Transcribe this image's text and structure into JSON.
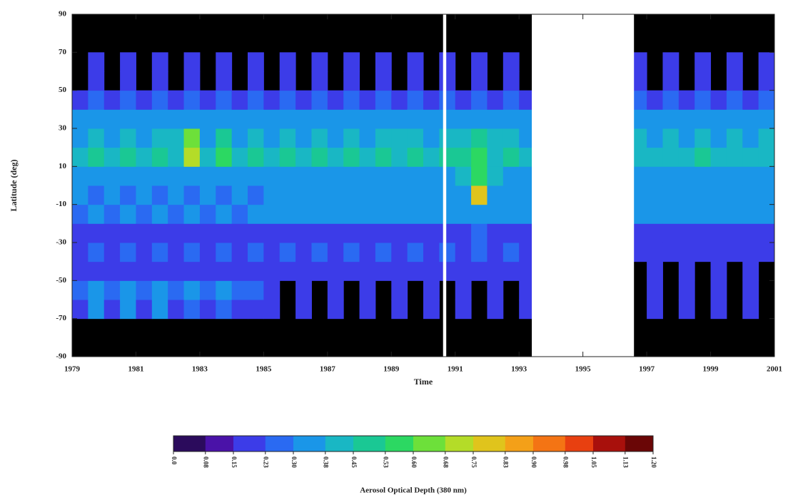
{
  "chart_data": {
    "type": "heatmap",
    "xlabel": "Time",
    "ylabel": "Latitude (deg)",
    "xlim": [
      1979,
      2001
    ],
    "ylim": [
      -90,
      90
    ],
    "xticks": [
      1979,
      1981,
      1983,
      1985,
      1987,
      1989,
      1991,
      1993,
      1995,
      1997,
      1999,
      2001
    ],
    "yticks": [
      -90,
      -70,
      -50,
      -30,
      -10,
      10,
      30,
      50,
      70,
      90
    ],
    "no_data_color": "#000000",
    "gap_color": "#ffffff",
    "gaps": [
      [
        1990.62,
        1990.72
      ],
      [
        1993.4,
        1996.6
      ]
    ],
    "xbins": [
      1979,
      1979.5,
      1980,
      1980.5,
      1981,
      1981.5,
      1982,
      1982.5,
      1983,
      1983.5,
      1984,
      1984.5,
      1985,
      1985.5,
      1986,
      1986.5,
      1987,
      1987.5,
      1988,
      1988.5,
      1989,
      1989.5,
      1990,
      1990.5,
      1991,
      1991.5,
      1992,
      1992.5,
      1993,
      1993.5,
      1994,
      1994.5,
      1995,
      1995.5,
      1996,
      1996.5,
      1997,
      1997.5,
      1998,
      1998.5,
      1999,
      1999.5,
      2000,
      2000.5,
      2001
    ],
    "ybins": [
      -90,
      -80,
      -70,
      -60,
      -50,
      -40,
      -30,
      -20,
      -10,
      0,
      10,
      20,
      30,
      40,
      50,
      60,
      70,
      80,
      90
    ],
    "values": [
      [
        null,
        null,
        0.2,
        0.25,
        0.22,
        0.2,
        0.18,
        0.28,
        0.3,
        0.33,
        0.38,
        0.35,
        0.3,
        0.2,
        null,
        null,
        null,
        null
      ],
      [
        null,
        null,
        0.3,
        0.3,
        0.2,
        0.25,
        0.2,
        0.3,
        0.28,
        0.3,
        0.45,
        0.42,
        0.32,
        0.26,
        0.22,
        0.16,
        null,
        null
      ],
      [
        null,
        null,
        0.2,
        0.24,
        0.22,
        0.2,
        0.2,
        0.28,
        0.3,
        0.34,
        0.4,
        0.36,
        0.3,
        0.2,
        null,
        null,
        null,
        null
      ],
      [
        null,
        null,
        0.3,
        0.3,
        0.2,
        0.25,
        0.2,
        0.3,
        0.28,
        0.3,
        0.46,
        0.42,
        0.32,
        0.26,
        0.22,
        0.16,
        null,
        null
      ],
      [
        null,
        null,
        0.2,
        0.25,
        0.22,
        0.2,
        0.18,
        0.28,
        0.3,
        0.33,
        0.38,
        0.35,
        0.3,
        0.2,
        null,
        null,
        null,
        null
      ],
      [
        null,
        null,
        0.3,
        0.3,
        0.2,
        0.25,
        0.2,
        0.3,
        0.28,
        0.3,
        0.45,
        0.42,
        0.32,
        0.26,
        0.22,
        0.16,
        null,
        null
      ],
      [
        null,
        null,
        0.2,
        0.24,
        0.22,
        0.2,
        0.18,
        0.28,
        0.3,
        0.34,
        0.42,
        0.38,
        0.3,
        0.2,
        null,
        null,
        null,
        null
      ],
      [
        null,
        null,
        0.28,
        0.3,
        0.2,
        0.25,
        0.2,
        0.3,
        0.28,
        0.32,
        0.72,
        0.6,
        0.34,
        0.26,
        0.22,
        0.16,
        null,
        null
      ],
      [
        null,
        null,
        0.2,
        0.25,
        0.22,
        0.2,
        0.18,
        0.28,
        0.3,
        0.33,
        0.4,
        0.36,
        0.3,
        0.2,
        null,
        null,
        null,
        null
      ],
      [
        null,
        null,
        0.28,
        0.3,
        0.2,
        0.25,
        0.2,
        0.3,
        0.28,
        0.3,
        0.55,
        0.46,
        0.32,
        0.26,
        0.22,
        0.16,
        null,
        null
      ],
      [
        null,
        null,
        0.2,
        0.24,
        0.22,
        0.2,
        0.18,
        0.28,
        0.3,
        0.33,
        0.38,
        0.35,
        0.3,
        0.2,
        null,
        null,
        null,
        null
      ],
      [
        null,
        null,
        0.22,
        0.28,
        0.2,
        0.25,
        0.2,
        0.3,
        0.28,
        0.3,
        0.45,
        0.42,
        0.32,
        0.26,
        0.22,
        0.16,
        null,
        null
      ],
      [
        null,
        null,
        0.18,
        0.22,
        0.2,
        0.22,
        0.2,
        0.3,
        0.33,
        0.36,
        0.4,
        0.36,
        0.3,
        0.2,
        null,
        null,
        null,
        null
      ],
      [
        null,
        null,
        null,
        null,
        0.2,
        0.24,
        0.2,
        0.3,
        0.3,
        0.32,
        0.45,
        0.4,
        0.32,
        0.25,
        0.2,
        0.15,
        null,
        null
      ],
      [
        null,
        null,
        0.18,
        0.22,
        0.2,
        0.22,
        0.2,
        0.3,
        0.33,
        0.36,
        0.42,
        0.36,
        0.3,
        0.2,
        null,
        null,
        null,
        null
      ],
      [
        null,
        null,
        null,
        null,
        0.2,
        0.24,
        0.2,
        0.3,
        0.3,
        0.32,
        0.46,
        0.4,
        0.32,
        0.25,
        0.2,
        0.15,
        null,
        null
      ],
      [
        null,
        null,
        0.18,
        0.22,
        0.2,
        0.22,
        0.2,
        0.3,
        0.33,
        0.36,
        0.4,
        0.36,
        0.3,
        0.2,
        null,
        null,
        null,
        null
      ],
      [
        null,
        null,
        null,
        null,
        0.2,
        0.24,
        0.2,
        0.3,
        0.3,
        0.32,
        0.48,
        0.42,
        0.32,
        0.25,
        0.2,
        0.15,
        null,
        null
      ],
      [
        null,
        null,
        0.18,
        0.22,
        0.2,
        0.22,
        0.2,
        0.3,
        0.33,
        0.36,
        0.4,
        0.36,
        0.3,
        0.2,
        null,
        null,
        null,
        null
      ],
      [
        null,
        null,
        null,
        null,
        0.2,
        0.24,
        0.2,
        0.3,
        0.3,
        0.32,
        0.45,
        0.4,
        0.32,
        0.25,
        0.2,
        0.15,
        null,
        null
      ],
      [
        null,
        null,
        0.18,
        0.22,
        0.2,
        0.22,
        0.2,
        0.3,
        0.33,
        0.36,
        0.42,
        0.38,
        0.3,
        0.2,
        null,
        null,
        null,
        null
      ],
      [
        null,
        null,
        null,
        null,
        0.2,
        0.24,
        0.2,
        0.3,
        0.3,
        0.32,
        0.46,
        0.4,
        0.32,
        0.25,
        0.2,
        0.15,
        null,
        null
      ],
      [
        null,
        null,
        0.18,
        0.22,
        0.2,
        0.22,
        0.2,
        0.3,
        0.33,
        0.36,
        0.4,
        0.36,
        0.3,
        0.2,
        null,
        null,
        null,
        null
      ],
      [
        null,
        null,
        null,
        null,
        0.2,
        0.24,
        0.2,
        0.3,
        0.3,
        0.32,
        0.45,
        0.4,
        0.32,
        0.25,
        0.2,
        0.15,
        null,
        null
      ],
      [
        null,
        null,
        0.18,
        0.22,
        0.2,
        0.22,
        0.22,
        0.32,
        0.35,
        0.38,
        0.5,
        0.4,
        0.3,
        0.2,
        null,
        null,
        null,
        null
      ],
      [
        null,
        null,
        null,
        null,
        0.22,
        0.26,
        0.24,
        0.36,
        0.82,
        0.55,
        0.58,
        0.46,
        0.34,
        0.25,
        0.2,
        0.15,
        null,
        null
      ],
      [
        null,
        null,
        0.18,
        0.22,
        0.2,
        0.22,
        0.22,
        0.32,
        0.36,
        0.38,
        0.44,
        0.38,
        0.3,
        0.2,
        null,
        null,
        null,
        null
      ],
      [
        null,
        null,
        null,
        null,
        0.2,
        0.24,
        0.2,
        0.3,
        0.32,
        0.34,
        0.52,
        0.44,
        0.32,
        0.25,
        0.2,
        0.15,
        null,
        null
      ],
      [
        null,
        null,
        0.18,
        0.22,
        0.2,
        0.22,
        0.2,
        0.3,
        0.33,
        0.36,
        0.4,
        0.36,
        0.3,
        0.2,
        null,
        null,
        null,
        null
      ],
      [
        null,
        null,
        null,
        null,
        null,
        null,
        null,
        null,
        null,
        null,
        null,
        null,
        null,
        null,
        null,
        null,
        null,
        null
      ],
      [
        null,
        null,
        null,
        null,
        null,
        null,
        null,
        null,
        null,
        null,
        null,
        null,
        null,
        null,
        null,
        null,
        null,
        null
      ],
      [
        null,
        null,
        null,
        null,
        null,
        null,
        null,
        null,
        null,
        null,
        null,
        null,
        null,
        null,
        null,
        null,
        null,
        null
      ],
      [
        null,
        null,
        null,
        null,
        null,
        null,
        null,
        null,
        null,
        null,
        null,
        null,
        null,
        null,
        null,
        null,
        null,
        null
      ],
      [
        null,
        null,
        null,
        null,
        null,
        null,
        null,
        null,
        null,
        null,
        null,
        null,
        null,
        null,
        null,
        null,
        null,
        null
      ],
      [
        null,
        null,
        null,
        null,
        null,
        null,
        null,
        null,
        null,
        null,
        null,
        null,
        null,
        null,
        null,
        null,
        null,
        null
      ],
      [
        null,
        null,
        null,
        null,
        null,
        0.2,
        0.22,
        0.3,
        0.32,
        0.33,
        0.42,
        0.4,
        0.3,
        0.24,
        0.2,
        0.15,
        null,
        null
      ],
      [
        null,
        null,
        0.2,
        0.22,
        0.2,
        0.22,
        0.22,
        0.3,
        0.33,
        0.35,
        0.38,
        0.35,
        0.3,
        0.2,
        null,
        null,
        null,
        null
      ],
      [
        null,
        null,
        null,
        null,
        null,
        0.2,
        0.22,
        0.3,
        0.32,
        0.33,
        0.44,
        0.4,
        0.3,
        0.24,
        0.2,
        0.15,
        null,
        null
      ],
      [
        null,
        null,
        0.2,
        0.22,
        0.2,
        0.22,
        0.22,
        0.3,
        0.33,
        0.35,
        0.38,
        0.35,
        0.3,
        0.2,
        null,
        null,
        null,
        null
      ],
      [
        null,
        null,
        null,
        null,
        null,
        0.2,
        0.22,
        0.3,
        0.34,
        0.36,
        0.5,
        0.42,
        0.3,
        0.24,
        0.2,
        0.15,
        null,
        null
      ],
      [
        null,
        null,
        0.2,
        0.22,
        0.2,
        0.22,
        0.22,
        0.3,
        0.33,
        0.35,
        0.38,
        0.35,
        0.3,
        0.2,
        null,
        null,
        null,
        null
      ],
      [
        null,
        null,
        null,
        null,
        null,
        0.2,
        0.22,
        0.3,
        0.32,
        0.33,
        0.42,
        0.4,
        0.3,
        0.24,
        0.2,
        0.15,
        null,
        null
      ],
      [
        null,
        null,
        0.2,
        0.22,
        0.2,
        0.22,
        0.22,
        0.3,
        0.33,
        0.35,
        0.38,
        0.35,
        0.3,
        0.2,
        null,
        null,
        null,
        null
      ],
      [
        null,
        null,
        null,
        null,
        null,
        0.2,
        0.22,
        0.3,
        0.32,
        0.33,
        0.42,
        0.4,
        0.3,
        0.24,
        0.2,
        0.15,
        null,
        null
      ]
    ],
    "colorbar": {
      "label": "Aerosol Optical Depth (380 nm)",
      "colors": [
        "#2b0b5c",
        "#4a12a8",
        "#3c3ce8",
        "#2a6af2",
        "#1a96e8",
        "#19b7c4",
        "#1ac894",
        "#2cd862",
        "#6de03a",
        "#b4dc28",
        "#e0c41c",
        "#f4a018",
        "#f47414",
        "#e84010",
        "#a8100c",
        "#6a0606"
      ],
      "ticks": [
        {
          "value": 0,
          "label": "0.0"
        },
        0.08,
        0.15,
        0.23,
        {
          "value": 0.3,
          "label": "0.30"
        },
        0.38,
        0.45,
        0.53,
        {
          "value": 0.6,
          "label": "0.60"
        },
        0.68,
        0.75,
        0.83,
        {
          "value": 0.9,
          "label": "0.90"
        },
        0.98,
        1.05,
        1.13,
        {
          "value": 1.2,
          "label": "1.20"
        }
      ]
    }
  }
}
